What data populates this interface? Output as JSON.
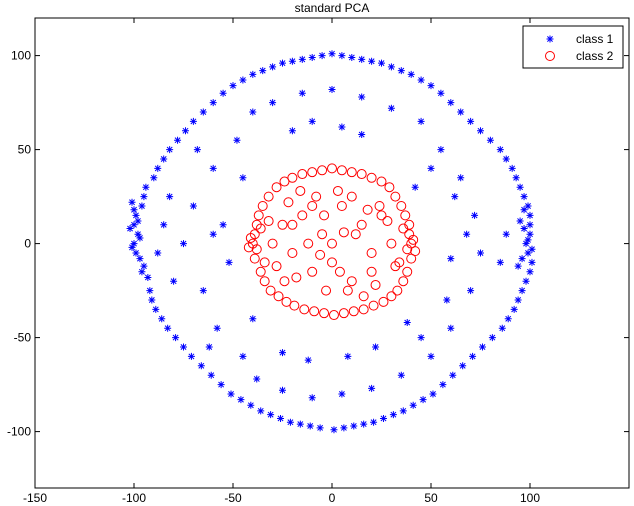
{
  "chart_data": {
    "type": "scatter",
    "title": "standard PCA",
    "xlabel": "",
    "ylabel": "",
    "xlim": [
      -150,
      150
    ],
    "ylim": [
      -130,
      120
    ],
    "xticks": [
      -150,
      -100,
      -50,
      0,
      50,
      100
    ],
    "yticks": [
      -100,
      -50,
      0,
      50,
      100
    ],
    "grid": false,
    "legend_position": "top-right",
    "series": [
      {
        "name": "class 1",
        "marker": "asterisk",
        "color": "#0000ff",
        "points": [
          [
            -100,
            10
          ],
          [
            -98,
            5
          ],
          [
            -101,
            -2
          ],
          [
            -99,
            15
          ],
          [
            -97,
            -8
          ],
          [
            -100,
            0
          ],
          [
            -96,
            20
          ],
          [
            -95,
            -12
          ],
          [
            -102,
            8
          ],
          [
            -99,
            -5
          ],
          [
            -98,
            12
          ],
          [
            -97,
            3
          ],
          [
            -96,
            -15
          ],
          [
            -100,
            18
          ],
          [
            -101,
            22
          ],
          [
            -95,
            25
          ],
          [
            -93,
            -18
          ],
          [
            -94,
            30
          ],
          [
            -92,
            -25
          ],
          [
            -90,
            35
          ],
          [
            -91,
            -30
          ],
          [
            -88,
            40
          ],
          [
            -89,
            -35
          ],
          [
            -85,
            45
          ],
          [
            -86,
            -40
          ],
          [
            -82,
            50
          ],
          [
            -83,
            -45
          ],
          [
            -78,
            55
          ],
          [
            -79,
            -50
          ],
          [
            -74,
            60
          ],
          [
            -75,
            -55
          ],
          [
            -70,
            65
          ],
          [
            -71,
            -60
          ],
          [
            -65,
            70
          ],
          [
            -66,
            -65
          ],
          [
            -60,
            75
          ],
          [
            -61,
            -70
          ],
          [
            -55,
            80
          ],
          [
            -56,
            -75
          ],
          [
            -50,
            84
          ],
          [
            -51,
            -80
          ],
          [
            -45,
            87
          ],
          [
            -46,
            -83
          ],
          [
            -40,
            90
          ],
          [
            -41,
            -86
          ],
          [
            -35,
            92
          ],
          [
            -36,
            -89
          ],
          [
            -30,
            94
          ],
          [
            -31,
            -91
          ],
          [
            -25,
            96
          ],
          [
            -26,
            -93
          ],
          [
            -20,
            97
          ],
          [
            -21,
            -95
          ],
          [
            -15,
            98
          ],
          [
            -16,
            -96
          ],
          [
            -10,
            99
          ],
          [
            -11,
            -97
          ],
          [
            -5,
            100
          ],
          [
            -6,
            -98
          ],
          [
            0,
            101
          ],
          [
            1,
            -99
          ],
          [
            5,
            100
          ],
          [
            6,
            -98
          ],
          [
            10,
            99
          ],
          [
            11,
            -97
          ],
          [
            15,
            98
          ],
          [
            16,
            -96
          ],
          [
            20,
            97
          ],
          [
            21,
            -95
          ],
          [
            25,
            96
          ],
          [
            26,
            -93
          ],
          [
            30,
            94
          ],
          [
            31,
            -91
          ],
          [
            35,
            92
          ],
          [
            36,
            -89
          ],
          [
            40,
            90
          ],
          [
            41,
            -86
          ],
          [
            45,
            87
          ],
          [
            46,
            -83
          ],
          [
            50,
            84
          ],
          [
            51,
            -80
          ],
          [
            55,
            80
          ],
          [
            56,
            -75
          ],
          [
            60,
            75
          ],
          [
            61,
            -70
          ],
          [
            65,
            70
          ],
          [
            66,
            -65
          ],
          [
            70,
            65
          ],
          [
            71,
            -60
          ],
          [
            75,
            60
          ],
          [
            76,
            -55
          ],
          [
            80,
            55
          ],
          [
            81,
            -50
          ],
          [
            85,
            50
          ],
          [
            86,
            -45
          ],
          [
            88,
            45
          ],
          [
            89,
            -40
          ],
          [
            91,
            40
          ],
          [
            92,
            -35
          ],
          [
            93,
            35
          ],
          [
            94,
            -30
          ],
          [
            95,
            30
          ],
          [
            96,
            -25
          ],
          [
            97,
            25
          ],
          [
            98,
            -20
          ],
          [
            99,
            20
          ],
          [
            100,
            -15
          ],
          [
            100,
            15
          ],
          [
            101,
            -10
          ],
          [
            100,
            10
          ],
          [
            99,
            -5
          ],
          [
            100,
            5
          ],
          [
            98,
            0
          ],
          [
            97,
            8
          ],
          [
            96,
            -8
          ],
          [
            99,
            2
          ],
          [
            101,
            -3
          ],
          [
            95,
            12
          ],
          [
            94,
            -12
          ],
          [
            97,
            18
          ],
          [
            -70,
            20
          ],
          [
            -65,
            -25
          ],
          [
            -60,
            40
          ],
          [
            -58,
            -45
          ],
          [
            -55,
            10
          ],
          [
            -52,
            -10
          ],
          [
            -48,
            55
          ],
          [
            -45,
            -60
          ],
          [
            -75,
            0
          ],
          [
            -80,
            -20
          ],
          [
            -82,
            25
          ],
          [
            -68,
            50
          ],
          [
            -62,
            -55
          ],
          [
            -40,
            70
          ],
          [
            -38,
            -72
          ],
          [
            -30,
            75
          ],
          [
            -25,
            -78
          ],
          [
            -15,
            80
          ],
          [
            -10,
            -82
          ],
          [
            0,
            82
          ],
          [
            5,
            -80
          ],
          [
            15,
            78
          ],
          [
            20,
            -77
          ],
          [
            30,
            72
          ],
          [
            35,
            -70
          ],
          [
            45,
            65
          ],
          [
            50,
            -60
          ],
          [
            55,
            50
          ],
          [
            60,
            -45
          ],
          [
            65,
            35
          ],
          [
            70,
            -25
          ],
          [
            72,
            15
          ],
          [
            75,
            -5
          ],
          [
            68,
            5
          ],
          [
            62,
            25
          ],
          [
            58,
            -30
          ],
          [
            50,
            40
          ],
          [
            45,
            -50
          ],
          [
            -20,
            60
          ],
          [
            -10,
            65
          ],
          [
            5,
            62
          ],
          [
            15,
            58
          ],
          [
            -25,
            -58
          ],
          [
            -12,
            -62
          ],
          [
            8,
            -60
          ],
          [
            22,
            -55
          ],
          [
            -85,
            10
          ],
          [
            -88,
            -5
          ],
          [
            85,
            -10
          ],
          [
            88,
            5
          ],
          [
            -60,
            5
          ],
          [
            60,
            -8
          ],
          [
            -45,
            35
          ],
          [
            42,
            30
          ],
          [
            -40,
            -40
          ],
          [
            38,
            -42
          ]
        ]
      },
      {
        "name": "class 2",
        "marker": "circle",
        "color": "#ff0000",
        "points": [
          [
            -38,
            10
          ],
          [
            -40,
            0
          ],
          [
            -39,
            -8
          ],
          [
            -37,
            15
          ],
          [
            -36,
            -15
          ],
          [
            -35,
            20
          ],
          [
            -34,
            -20
          ],
          [
            -32,
            25
          ],
          [
            -31,
            -25
          ],
          [
            -28,
            30
          ],
          [
            -27,
            -28
          ],
          [
            -24,
            33
          ],
          [
            -23,
            -31
          ],
          [
            -20,
            35
          ],
          [
            -19,
            -33
          ],
          [
            -15,
            37
          ],
          [
            -14,
            -35
          ],
          [
            -10,
            38
          ],
          [
            -9,
            -36
          ],
          [
            -5,
            39
          ],
          [
            -4,
            -37
          ],
          [
            0,
            40
          ],
          [
            1,
            -38
          ],
          [
            5,
            39
          ],
          [
            6,
            -37
          ],
          [
            10,
            38
          ],
          [
            11,
            -36
          ],
          [
            15,
            37
          ],
          [
            16,
            -35
          ],
          [
            20,
            35
          ],
          [
            21,
            -33
          ],
          [
            25,
            33
          ],
          [
            26,
            -31
          ],
          [
            29,
            30
          ],
          [
            30,
            -28
          ],
          [
            32,
            25
          ],
          [
            33,
            -25
          ],
          [
            35,
            20
          ],
          [
            36,
            -20
          ],
          [
            37,
            15
          ],
          [
            38,
            -15
          ],
          [
            39,
            10
          ],
          [
            40,
            -8
          ],
          [
            40,
            0
          ],
          [
            39,
            5
          ],
          [
            38,
            -3
          ],
          [
            -39,
            5
          ],
          [
            -38,
            -3
          ],
          [
            -41,
            3
          ],
          [
            -42,
            -2
          ],
          [
            41,
            2
          ],
          [
            42,
            -4
          ],
          [
            -36,
            8
          ],
          [
            36,
            8
          ],
          [
            -34,
            -10
          ],
          [
            34,
            -10
          ],
          [
            -25,
            10
          ],
          [
            -20,
            -5
          ],
          [
            -15,
            15
          ],
          [
            -10,
            -15
          ],
          [
            -5,
            5
          ],
          [
            0,
            -10
          ],
          [
            5,
            20
          ],
          [
            10,
            -20
          ],
          [
            15,
            10
          ],
          [
            20,
            -5
          ],
          [
            25,
            15
          ],
          [
            -22,
            22
          ],
          [
            22,
            -22
          ],
          [
            -18,
            -18
          ],
          [
            18,
            18
          ],
          [
            0,
            0
          ],
          [
            -8,
            25
          ],
          [
            8,
            -25
          ],
          [
            -30,
            0
          ],
          [
            30,
            0
          ],
          [
            -12,
            0
          ],
          [
            12,
            5
          ],
          [
            -3,
            -25
          ],
          [
            3,
            28
          ],
          [
            -28,
            -12
          ],
          [
            28,
            12
          ],
          [
            -16,
            28
          ],
          [
            16,
            -28
          ],
          [
            -6,
            -6
          ],
          [
            6,
            6
          ],
          [
            -24,
            -20
          ],
          [
            24,
            20
          ],
          [
            -32,
            12
          ],
          [
            32,
            -12
          ],
          [
            -20,
            10
          ],
          [
            20,
            -15
          ],
          [
            -10,
            20
          ],
          [
            10,
            25
          ],
          [
            -4,
            15
          ],
          [
            4,
            -15
          ]
        ]
      }
    ]
  }
}
